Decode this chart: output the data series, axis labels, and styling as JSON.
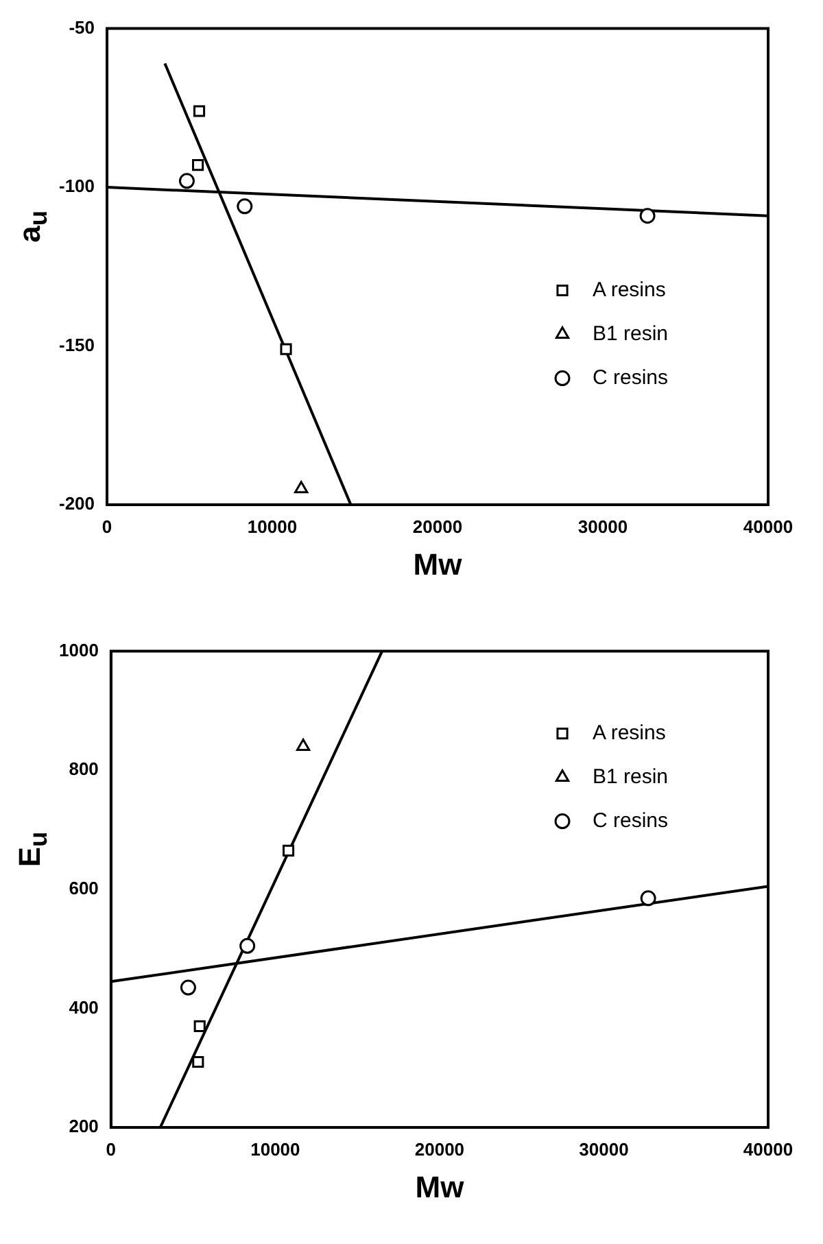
{
  "chart_data": [
    {
      "type": "scatter",
      "xlabel": "Mw",
      "ylabel": "a$_{u}$",
      "xlim": [
        0,
        40000
      ],
      "xticks": [
        0,
        10000,
        20000,
        30000,
        40000
      ],
      "ylim": [
        -200,
        -50
      ],
      "yticks": [
        -200,
        -150,
        -100,
        -50
      ],
      "grid": false,
      "legend": "right",
      "series": [
        {
          "name": "A resins",
          "color": "#000000",
          "marker": "square",
          "x": [
            5580,
            5500,
            10830
          ],
          "values": [
            -76,
            -93,
            -151
          ]
        },
        {
          "name": "B1 resin",
          "color": "#000000",
          "marker": "triangle",
          "x": [
            11750
          ],
          "values": [
            -195
          ]
        },
        {
          "name": "C resins",
          "color": "#000000",
          "marker": "circle",
          "x": [
            4830,
            8330,
            32700
          ],
          "values": [
            -98,
            -106,
            -109
          ]
        },
        {
          "type": "line",
          "color": "#000000",
          "marker": "none",
          "x": [
            3500,
            14750
          ],
          "values": [
            -61,
            -200
          ]
        },
        {
          "type": "line",
          "color": "#000000",
          "marker": "none",
          "x": [
            0,
            40000
          ],
          "values": [
            -100,
            -109
          ]
        }
      ]
    },
    {
      "type": "scatter",
      "xlabel": "Mw",
      "ylabel": "E$_{u}$",
      "xlim": [
        0,
        40000
      ],
      "xticks": [
        0,
        10000,
        20000,
        30000,
        40000
      ],
      "ylim": [
        200,
        1000
      ],
      "yticks": [
        200,
        400,
        600,
        800,
        1000
      ],
      "grid": false,
      "legend": "top right",
      "series": [
        {
          "name": "A resins",
          "color": "#000000",
          "marker": "square",
          "x": [
            5400,
            5300,
            10800
          ],
          "values": [
            370,
            310,
            665
          ]
        },
        {
          "name": "B1 resin",
          "color": "#000000",
          "marker": "triangle",
          "x": [
            11700
          ],
          "values": [
            840
          ]
        },
        {
          "name": "C resins",
          "color": "#000000",
          "marker": "circle",
          "x": [
            4700,
            8300,
            32700
          ],
          "values": [
            435,
            505,
            585
          ]
        },
        {
          "type": "line",
          "color": "#000000",
          "marker": "none",
          "x": [
            3000,
            16500
          ],
          "values": [
            200,
            1000
          ]
        },
        {
          "type": "line",
          "color": "#000000",
          "marker": "none",
          "x": [
            0,
            40000
          ],
          "values": [
            445,
            605
          ]
        }
      ]
    }
  ]
}
